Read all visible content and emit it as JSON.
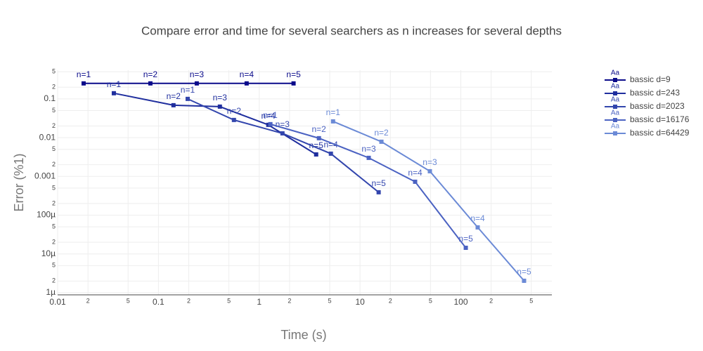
{
  "chart_data": {
    "type": "line",
    "title": "Compare error and time for several searchers as n increases for several depths",
    "x_label": "Time (s)",
    "y_label": "Error (%1)",
    "xscale": "log",
    "yscale": "log",
    "grid": true,
    "legend_position": "right",
    "legend_icon_text": "Aa",
    "xlim": [
      0.01,
      800
    ],
    "ylim": [
      8.8e-07,
      0.55
    ],
    "xticks": [
      0.01,
      {
        "value": 0.02,
        "label": "2"
      },
      {
        "value": 0.05,
        "label": "5"
      },
      0.1,
      {
        "value": 0.2,
        "label": "2"
      },
      {
        "value": 0.5,
        "label": "5"
      },
      1,
      {
        "value": 2,
        "label": "2"
      },
      {
        "value": 5,
        "label": "5"
      },
      10,
      {
        "value": 20,
        "label": "2"
      },
      {
        "value": 50,
        "label": "5"
      },
      100,
      {
        "value": 200,
        "label": "2"
      },
      {
        "value": 500,
        "label": "5"
      }
    ],
    "yticks": [
      {
        "value": 1e-06,
        "label": "1µ"
      },
      {
        "value": 2e-06,
        "label": "2"
      },
      {
        "value": 5e-06,
        "label": "5"
      },
      {
        "value": 1e-05,
        "label": "10µ"
      },
      {
        "value": 2e-05,
        "label": "2"
      },
      {
        "value": 5e-05,
        "label": "5"
      },
      {
        "value": 0.0001,
        "label": "100µ"
      },
      {
        "value": 0.0002,
        "label": "2"
      },
      {
        "value": 0.0005,
        "label": "5"
      },
      0.001,
      {
        "value": 0.002,
        "label": "2"
      },
      {
        "value": 0.005,
        "label": "5"
      },
      0.01,
      {
        "value": 0.02,
        "label": "2"
      },
      {
        "value": 0.05,
        "label": "5"
      },
      0.1,
      {
        "value": 0.2,
        "label": "2"
      },
      {
        "value": 0.5,
        "label": "5"
      }
    ],
    "series": [
      {
        "name": "bassic d=9",
        "color": "#0a0a8a",
        "x": [
          0.0181,
          0.0832,
          0.24,
          0.75,
          2.19
        ],
        "values": [
          0.251,
          0.251,
          0.251,
          0.251,
          0.251
        ],
        "labels": [
          "n=1",
          "n=2",
          "n=3",
          "n=4",
          "n=5"
        ]
      },
      {
        "name": "bassic d=243",
        "color": "#1f2e9e",
        "x": [
          0.0361,
          0.141,
          0.407,
          1.23,
          3.67
        ],
        "values": [
          0.14,
          0.0687,
          0.0632,
          0.0214,
          0.00369
        ],
        "labels": [
          "n=1",
          "n=2",
          "n=3",
          "n=4",
          "n=5"
        ]
      },
      {
        "name": "bassic d=2023",
        "color": "#3346ad",
        "x": [
          0.195,
          0.561,
          1.7,
          5.14,
          15.3
        ],
        "values": [
          0.1,
          0.0286,
          0.0129,
          0.00386,
          0.00039
        ],
        "labels": [
          "n=1",
          "n=2",
          "n=3",
          "n=4",
          "n=5"
        ]
      },
      {
        "name": "bassic d=16176",
        "color": "#4b62c2",
        "x": [
          1.29,
          3.91,
          12.2,
          35.2,
          112
        ],
        "values": [
          0.0223,
          0.00968,
          0.00301,
          0.000728,
          1.44e-05
        ],
        "labels": [
          "n=1",
          "n=2",
          "n=3",
          "n=4",
          "n=5"
        ]
      },
      {
        "name": "bassic d=64429",
        "color": "#6b8ad6",
        "x": [
          5.4,
          16.3,
          49.3,
          147,
          424
        ],
        "values": [
          0.0263,
          0.00785,
          0.00136,
          4.84e-05,
          2.03e-06
        ],
        "labels": [
          "n=1",
          "n=2",
          "n=3",
          "n=4",
          "n=5"
        ]
      }
    ]
  }
}
